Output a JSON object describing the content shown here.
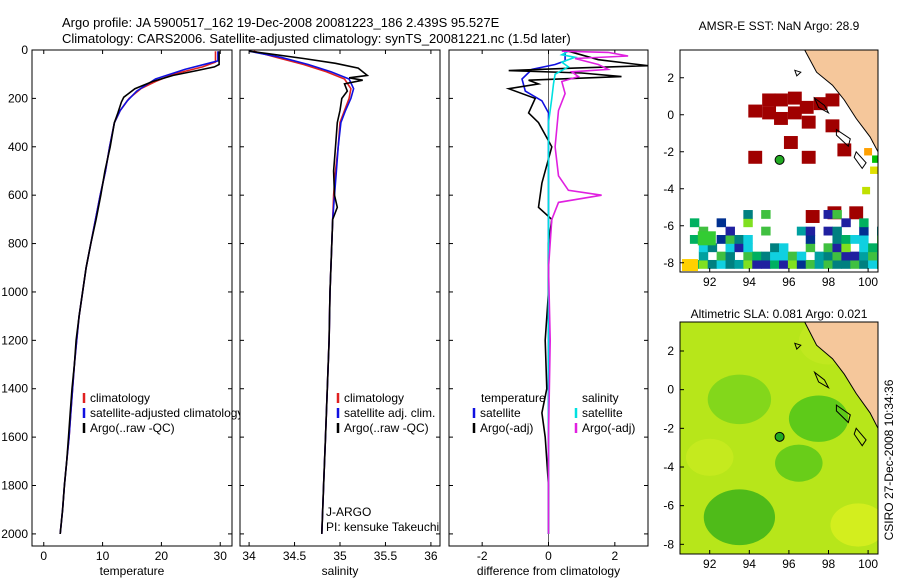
{
  "header": {
    "line1": "Argo profile: JA 5900517_162 19-Dec-2008 20081223_186 2.439S 95.527E",
    "line2": "Climatology: CARS2006. Satellite-adjusted climatology: synTS_20081221.nc (1.5d later)"
  },
  "side_label": "CSIRO 27-Dec-2008 10:34:36",
  "colors": {
    "climatology": "#e02020",
    "satellite": "#1010e0",
    "argo": "#000000",
    "sal_satellite": "#00e0e0",
    "sal_argo": "#e020e0",
    "land": "#f5c79b",
    "float_marker": "#22aa22"
  },
  "chart_data": [
    {
      "type": "line",
      "id": "temperature",
      "xlabel": "temperature",
      "ylabel": "",
      "xlim": [
        -2,
        32
      ],
      "ylim": [
        2050,
        0
      ],
      "xticks": [
        0,
        10,
        20,
        30
      ],
      "yticks": [
        0,
        200,
        400,
        600,
        800,
        1000,
        1200,
        1400,
        1600,
        1800,
        2000
      ],
      "legend": [
        "climatology",
        "satellite-adjusted climatology",
        "Argo(..raw -QC)"
      ],
      "series": [
        {
          "name": "climatology",
          "color": "red",
          "points": [
            [
              29.2,
              5
            ],
            [
              29.2,
              50
            ],
            [
              27,
              70
            ],
            [
              22,
              100
            ],
            [
              19,
              130
            ],
            [
              16.5,
              160
            ],
            [
              14.5,
              200
            ],
            [
              13,
              250
            ],
            [
              12,
              300
            ],
            [
              11.2,
              400
            ],
            [
              10.5,
              500
            ],
            [
              9.6,
              600
            ],
            [
              8.8,
              700
            ],
            [
              8.0,
              800
            ],
            [
              7.2,
              900
            ],
            [
              6.6,
              1000
            ],
            [
              6.0,
              1100
            ],
            [
              5.6,
              1200
            ],
            [
              5.2,
              1300
            ],
            [
              4.9,
              1400
            ],
            [
              4.6,
              1500
            ],
            [
              4.3,
              1600
            ],
            [
              3.9,
              1700
            ],
            [
              3.5,
              1800
            ],
            [
              3.2,
              1900
            ],
            [
              2.8,
              2000
            ]
          ]
        },
        {
          "name": "satellite-adjusted climatology",
          "color": "blue",
          "points": [
            [
              29.6,
              5
            ],
            [
              29.6,
              45
            ],
            [
              28,
              55
            ],
            [
              24,
              80
            ],
            [
              19,
              120
            ],
            [
              15.8,
              170
            ],
            [
              14.2,
              210
            ],
            [
              13,
              250
            ],
            [
              12,
              300
            ],
            [
              11.2,
              400
            ],
            [
              10.5,
              500
            ],
            [
              9.6,
              600
            ],
            [
              8.8,
              700
            ],
            [
              8.0,
              800
            ],
            [
              7.2,
              900
            ],
            [
              6.6,
              1000
            ],
            [
              6.0,
              1100
            ],
            [
              5.6,
              1200
            ],
            [
              5.2,
              1300
            ],
            [
              4.9,
              1400
            ],
            [
              4.6,
              1500
            ],
            [
              4.3,
              1600
            ],
            [
              3.9,
              1700
            ],
            [
              3.5,
              1800
            ],
            [
              3.2,
              1900
            ],
            [
              2.8,
              2000
            ]
          ]
        },
        {
          "name": "Argo(..raw -QC)",
          "color": "black",
          "points": [
            [
              29.8,
              5
            ],
            [
              29.8,
              60
            ],
            [
              29,
              70
            ],
            [
              26,
              85
            ],
            [
              22,
              105
            ],
            [
              18.5,
              130
            ],
            [
              15.5,
              160
            ],
            [
              13.6,
              195
            ],
            [
              13.2,
              215
            ],
            [
              12.6,
              260
            ],
            [
              12.0,
              300
            ],
            [
              11.3,
              400
            ],
            [
              10.4,
              500
            ],
            [
              9.7,
              600
            ],
            [
              8.9,
              700
            ],
            [
              8.0,
              800
            ],
            [
              7.2,
              900
            ],
            [
              6.6,
              1000
            ],
            [
              6.0,
              1100
            ],
            [
              5.5,
              1200
            ],
            [
              5.2,
              1300
            ],
            [
              4.8,
              1400
            ],
            [
              4.5,
              1500
            ],
            [
              4.2,
              1600
            ],
            [
              3.9,
              1700
            ],
            [
              3.5,
              1800
            ],
            [
              3.2,
              1900
            ],
            [
              2.8,
              2000
            ]
          ]
        }
      ]
    },
    {
      "type": "line",
      "id": "salinity",
      "xlabel": "salinity",
      "xlim": [
        33.9,
        36.1
      ],
      "ylim": [
        2050,
        0
      ],
      "xticks": [
        34,
        34.5,
        35,
        35.5,
        36
      ],
      "legend": [
        "climatology",
        "satellite adj. clim.",
        "Argo(..raw -QC)"
      ],
      "annotations": [
        "J-ARGO",
        "PI: kensuke Takeuchi"
      ],
      "series": [
        {
          "name": "climatology",
          "color": "red",
          "points": [
            [
              34.05,
              5
            ],
            [
              34.3,
              30
            ],
            [
              34.6,
              60
            ],
            [
              34.85,
              90
            ],
            [
              35.05,
              120
            ],
            [
              35.12,
              160
            ],
            [
              35.1,
              200
            ],
            [
              35.05,
              250
            ],
            [
              35.0,
              300
            ],
            [
              34.98,
              400
            ],
            [
              34.95,
              500
            ],
            [
              34.93,
              600
            ],
            [
              34.92,
              700
            ],
            [
              34.91,
              800
            ],
            [
              34.9,
              900
            ],
            [
              34.89,
              1000
            ],
            [
              34.88,
              1200
            ],
            [
              34.86,
              1400
            ],
            [
              34.84,
              1600
            ],
            [
              34.82,
              1800
            ],
            [
              34.8,
              2000
            ]
          ]
        },
        {
          "name": "satellite adj. clim.",
          "color": "blue",
          "points": [
            [
              34.0,
              5
            ],
            [
              34.35,
              30
            ],
            [
              34.65,
              60
            ],
            [
              34.9,
              90
            ],
            [
              35.1,
              120
            ],
            [
              35.15,
              160
            ],
            [
              35.12,
              200
            ],
            [
              35.06,
              250
            ],
            [
              35.01,
              300
            ],
            [
              34.98,
              400
            ],
            [
              34.96,
              500
            ],
            [
              34.94,
              600
            ],
            [
              34.92,
              700
            ],
            [
              34.91,
              800
            ],
            [
              34.9,
              900
            ],
            [
              34.89,
              1000
            ],
            [
              34.88,
              1200
            ],
            [
              34.86,
              1400
            ],
            [
              34.84,
              1600
            ],
            [
              34.82,
              1800
            ],
            [
              34.8,
              2000
            ]
          ]
        },
        {
          "name": "Argo(..raw -QC)",
          "color": "black",
          "points": [
            [
              34.0,
              5
            ],
            [
              34.2,
              15
            ],
            [
              34.6,
              35
            ],
            [
              34.95,
              55
            ],
            [
              35.2,
              75
            ],
            [
              35.3,
              105
            ],
            [
              35.1,
              115
            ],
            [
              35.25,
              125
            ],
            [
              35.05,
              140
            ],
            [
              35.08,
              170
            ],
            [
              35.02,
              200
            ],
            [
              35.0,
              250
            ],
            [
              34.97,
              300
            ],
            [
              34.95,
              400
            ],
            [
              34.93,
              500
            ],
            [
              34.94,
              600
            ],
            [
              34.97,
              650
            ],
            [
              34.92,
              700
            ],
            [
              34.91,
              800
            ],
            [
              34.9,
              900
            ],
            [
              34.89,
              1000
            ],
            [
              34.88,
              1200
            ],
            [
              34.86,
              1400
            ],
            [
              34.84,
              1600
            ],
            [
              34.82,
              1800
            ],
            [
              34.8,
              2000
            ]
          ]
        }
      ]
    },
    {
      "type": "line",
      "id": "difference",
      "xlabel": "difference from climatology",
      "xlim": [
        -3,
        3
      ],
      "ylim": [
        2050,
        0
      ],
      "xticks": [
        -2,
        0,
        2
      ],
      "legend_left": [
        "temperature",
        "satellite",
        "Argo(-adj)"
      ],
      "legend_right": [
        "salinity",
        "satellite",
        "Argo(-adj)"
      ],
      "series": [
        {
          "name": "temperature satellite",
          "color": "blue",
          "points": [
            [
              0.5,
              5
            ],
            [
              0.5,
              45
            ],
            [
              0.2,
              60
            ],
            [
              -0.5,
              80
            ],
            [
              -0.8,
              120
            ],
            [
              -0.7,
              170
            ],
            [
              -0.2,
              210
            ],
            [
              0,
              260
            ],
            [
              0,
              300
            ],
            [
              0,
              2000
            ]
          ]
        },
        {
          "name": "temperature Argo(-adj)",
          "color": "black",
          "points": [
            [
              0.6,
              5
            ],
            [
              1.5,
              40
            ],
            [
              3,
              65
            ],
            [
              0.8,
              75
            ],
            [
              -1.2,
              85
            ],
            [
              1.0,
              95
            ],
            [
              2.2,
              110
            ],
            [
              -0.6,
              125
            ],
            [
              -0.3,
              140
            ],
            [
              -1.2,
              160
            ],
            [
              -0.4,
              200
            ],
            [
              -0.6,
              260
            ],
            [
              -0.3,
              300
            ],
            [
              0.1,
              400
            ],
            [
              -0.2,
              550
            ],
            [
              -0.3,
              650
            ],
            [
              0.1,
              700
            ],
            [
              0,
              800
            ],
            [
              0,
              1000
            ],
            [
              -0.1,
              1200
            ],
            [
              -0.05,
              1400
            ],
            [
              -0.2,
              1500
            ],
            [
              -0.1,
              1600
            ],
            [
              0,
              1800
            ],
            [
              0,
              2000
            ]
          ]
        },
        {
          "name": "salinity satellite",
          "color": "cyan",
          "points": [
            [
              0.6,
              5
            ],
            [
              0.4,
              20
            ],
            [
              0.8,
              30
            ],
            [
              0.4,
              50
            ],
            [
              0.6,
              70
            ],
            [
              0.2,
              100
            ],
            [
              0.15,
              140
            ],
            [
              0.1,
              200
            ],
            [
              0,
              300
            ],
            [
              0,
              2000
            ]
          ]
        },
        {
          "name": "salinity Argo(-adj)",
          "color": "magenta",
          "points": [
            [
              0.4,
              5
            ],
            [
              1.8,
              10
            ],
            [
              2.4,
              25
            ],
            [
              0.8,
              35
            ],
            [
              1.5,
              60
            ],
            [
              1.8,
              80
            ],
            [
              0.7,
              90
            ],
            [
              0.9,
              110
            ],
            [
              0.4,
              130
            ],
            [
              0.5,
              180
            ],
            [
              0.3,
              250
            ],
            [
              0.2,
              400
            ],
            [
              0.3,
              520
            ],
            [
              0.6,
              580
            ],
            [
              1.6,
              600
            ],
            [
              0.3,
              630
            ],
            [
              0.1,
              700
            ],
            [
              0,
              900
            ],
            [
              0.05,
              1200
            ],
            [
              0,
              1600
            ],
            [
              0,
              2000
            ]
          ]
        }
      ]
    },
    {
      "type": "heatmap",
      "id": "sst_map",
      "title": "AMSR-E SST: NaN Argo: 28.9",
      "xlim": [
        90.5,
        100.5
      ],
      "ylim": [
        -8.5,
        3.5
      ],
      "xticks": [
        92,
        94,
        96,
        98,
        100
      ],
      "yticks": [
        2,
        0,
        -2,
        -4,
        -6,
        -8
      ],
      "float_position": [
        95.53,
        -2.44
      ]
    },
    {
      "type": "heatmap",
      "id": "sla_map",
      "title": "Altimetric SLA: 0.081 Argo: 0.021",
      "xlim": [
        90.5,
        100.5
      ],
      "ylim": [
        -8.5,
        3.5
      ],
      "xticks": [
        92,
        94,
        96,
        98,
        100
      ],
      "yticks": [
        2,
        0,
        -2,
        -4,
        -6,
        -8
      ],
      "float_position": [
        95.53,
        -2.44
      ]
    }
  ]
}
